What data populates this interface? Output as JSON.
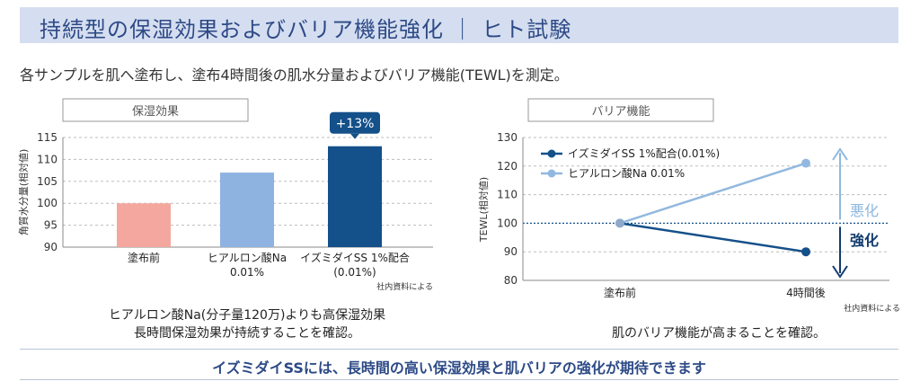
{
  "header": {
    "title": "持続型の保湿効果およびバリア機能強化 ｜ ヒト試験"
  },
  "intro": "各サンプルを肌へ塗布し、塗布4時間後の肌水分量およびバリア機能(TEWL)を測定。",
  "colors": {
    "header_bg": "#d5def0",
    "title": "#2d4a86",
    "bar_base": "#f3a79e",
    "bar_ha": "#8eb3e0",
    "bar_iz": "#14508a",
    "line_iz": "#14508a",
    "line_ha": "#92b8df",
    "worse": "#8eb8df",
    "better": "#123b6d"
  },
  "chart_data": [
    {
      "type": "bar",
      "panel_title": "保湿効果",
      "ylabel": "角質水分量(相対値)",
      "ylim": [
        90,
        115
      ],
      "yticks": [
        "90",
        "95",
        "100",
        "105",
        "110",
        "115"
      ],
      "grid": true,
      "categories": [
        "塗布前",
        "ヒアルロン酸Na\n0.01%",
        "イズミダイSS 1%配合\n(0.01%)"
      ],
      "values": [
        100,
        107,
        113
      ],
      "callout": "+13%",
      "source": "社内資料による"
    },
    {
      "type": "line",
      "panel_title": "バリア機能",
      "ylabel": "TEWL(相対値)",
      "ylim": [
        80,
        130
      ],
      "yticks": [
        "80",
        "90",
        "100",
        "110",
        "120",
        "130"
      ],
      "grid": true,
      "legend_position": "top-left",
      "x": [
        "塗布前",
        "4時間後"
      ],
      "series": [
        {
          "name": "イズミダイSS 1%配合(0.01%)",
          "values": [
            100,
            90
          ]
        },
        {
          "name": "ヒアルロン酸Na 0.01%",
          "values": [
            100,
            121
          ]
        }
      ],
      "annotations": {
        "worse": "悪化",
        "better": "強化"
      },
      "source": "社内資料による"
    }
  ],
  "captions": {
    "left": [
      "ヒアルロン酸Na(分子量120万)よりも高保湿効果",
      "長時間保湿効果が持続することを確認。"
    ],
    "right": "肌のバリア機能が高まることを確認。"
  },
  "conclusion": "イズミダイSSには、長時間の高い保湿効果と肌バリアの強化が期待できます"
}
